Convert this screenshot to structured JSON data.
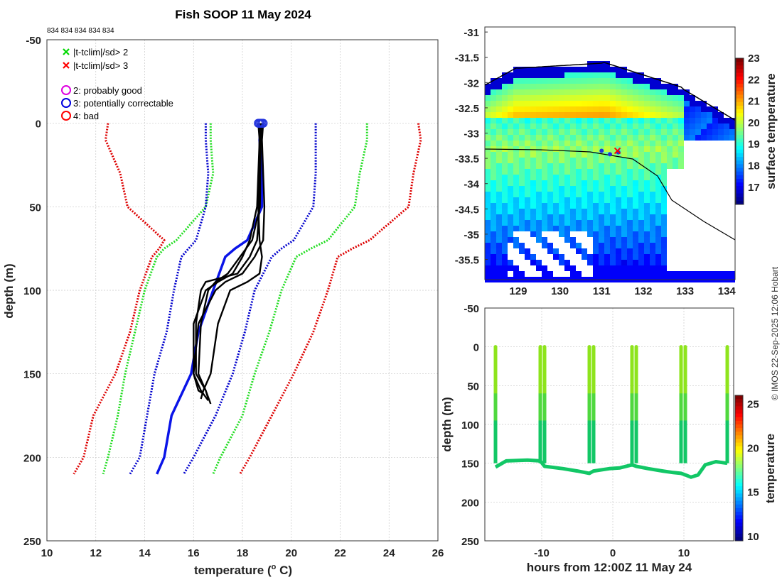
{
  "chart_data": [
    {
      "type": "line",
      "id": "profile",
      "title": "Fish SOOP 11 May 2024",
      "ids_label": "834 834 834 834 834",
      "xlabel": "temperature (",
      "xlabel_unit_sup": "o",
      "xlabel_unit": " C)",
      "ylabel": "depth (m)",
      "xlim": [
        10,
        26
      ],
      "ylim": [
        -50,
        250
      ],
      "xticks": [
        10,
        12,
        14,
        16,
        18,
        20,
        22,
        24,
        26
      ],
      "yticks": [
        -50,
        0,
        50,
        100,
        150,
        200,
        250
      ],
      "legend": [
        {
          "marker": "x",
          "color": "#00d800",
          "label": "|t-tclim|/sd> 2"
        },
        {
          "marker": "x",
          "color": "#ff0000",
          "label": "|t-tclim|/sd> 3"
        },
        {
          "marker": "o",
          "color": "#e000e0",
          "label": "2: probably good"
        },
        {
          "marker": "o",
          "color": "#0000e0",
          "label": "3: potentially correctable"
        },
        {
          "marker": "o",
          "color": "#ff0000",
          "label": "4: bad"
        }
      ],
      "climatology": {
        "depth": [
          0,
          10,
          30,
          50,
          70,
          75,
          80,
          100,
          125,
          150,
          175,
          200,
          210
        ],
        "mean": [
          18.8,
          18.7,
          18.8,
          18.8,
          18.2,
          17.7,
          17.3,
          16.8,
          16.2,
          15.9,
          15.1,
          14.8,
          14.5
        ],
        "sd2_low": [
          16.7,
          16.7,
          16.8,
          16.5,
          15.3,
          14.8,
          14.5,
          14.0,
          13.6,
          13.2,
          12.9,
          12.5,
          12.3
        ],
        "sd2_high": [
          23.1,
          23.1,
          22.8,
          22.6,
          21.5,
          20.8,
          20.2,
          19.6,
          19.1,
          18.5,
          18.0,
          17.1,
          16.8
        ],
        "sd3_low": [
          12.5,
          12.4,
          13.0,
          13.3,
          14.8,
          14.6,
          14.3,
          13.8,
          13.4,
          12.8,
          11.9,
          11.5,
          11.1
        ],
        "sd3_high": [
          25.2,
          25.3,
          25.0,
          24.8,
          23.2,
          22.5,
          21.9,
          21.5,
          20.9,
          20.1,
          19.2,
          18.3,
          17.9
        ],
        "sd1_low": [
          16.5,
          16.5,
          16.6,
          16.5,
          16.1,
          15.8,
          15.5,
          15.2,
          14.9,
          14.4,
          14.1,
          13.8,
          13.4
        ],
        "sd1_high": [
          21.0,
          21.0,
          21.0,
          20.9,
          20.1,
          19.6,
          19.2,
          18.5,
          18.1,
          17.6,
          16.9,
          16.0,
          15.6
        ]
      },
      "profiles": [
        {
          "depth": [
            0,
            10,
            50,
            70,
            80,
            90,
            95,
            100,
            120,
            150,
            160,
            165
          ],
          "temp": [
            18.75,
            18.72,
            18.7,
            18.6,
            18.3,
            17.8,
            16.5,
            16.3,
            16.1,
            16.1,
            16.5,
            16.6
          ]
        },
        {
          "depth": [
            0,
            10,
            50,
            70,
            80,
            90,
            95,
            100,
            120,
            150,
            160,
            168
          ],
          "temp": [
            18.8,
            18.75,
            18.72,
            18.4,
            17.9,
            17.4,
            16.9,
            16.6,
            16.3,
            16.2,
            16.5,
            16.7
          ]
        },
        {
          "depth": [
            0,
            10,
            50,
            70,
            80,
            90,
            95,
            100,
            120,
            150,
            160,
            165
          ],
          "temp": [
            18.7,
            18.7,
            18.65,
            18.7,
            18.8,
            18.7,
            18.2,
            17.5,
            17.0,
            16.7,
            16.4,
            16.3
          ]
        },
        {
          "depth": [
            0,
            10,
            50,
            70,
            80,
            90,
            95,
            100,
            120,
            150,
            160,
            162
          ],
          "temp": [
            18.85,
            18.8,
            18.9,
            18.85,
            18.5,
            18.0,
            17.3,
            16.9,
            16.2,
            16.0,
            16.2,
            16.4
          ]
        },
        {
          "depth": [
            0,
            10,
            50,
            70,
            80,
            90,
            95,
            100,
            120,
            150,
            160,
            166
          ],
          "temp": [
            18.65,
            18.7,
            18.6,
            18.3,
            18.0,
            17.6,
            17.0,
            16.5,
            16.0,
            16.0,
            16.3,
            16.6
          ]
        }
      ]
    },
    {
      "type": "heatmap",
      "id": "map",
      "colorbar_label": "surface temperature",
      "xlim": [
        128.2,
        134.2
      ],
      "ylim": [
        -35.9,
        -30.9
      ],
      "xticks": [
        129,
        130,
        131,
        132,
        133,
        134
      ],
      "yticks": [
        -31,
        -31.5,
        -32,
        -32.5,
        -33,
        -33.5,
        -34,
        -34.5,
        -35,
        -35.5
      ],
      "clim": [
        16.2,
        23
      ],
      "cticks": [
        17,
        18,
        19,
        20,
        21,
        22,
        23
      ],
      "track": {
        "lon": [
          131.0,
          131.2,
          131.4
        ],
        "lat": [
          -33.35,
          -33.42,
          -33.38
        ]
      }
    },
    {
      "type": "scatter",
      "id": "section",
      "xlabel": "hours from 12:00Z 11 May 24",
      "ylabel": "depth (m)",
      "colorbar_label": "temperature",
      "xlim": [
        -18,
        17
      ],
      "ylim": [
        -50,
        250
      ],
      "xticks": [
        -10,
        0,
        10
      ],
      "yticks": [
        -50,
        0,
        50,
        100,
        150,
        200,
        250
      ],
      "clim": [
        9.5,
        26
      ],
      "cticks": [
        10,
        15,
        20,
        25
      ],
      "drops": [
        -16.5,
        -10.2,
        -9.6,
        -3.3,
        -2.7,
        2.7,
        3.3,
        9.6,
        10.2,
        16.1
      ],
      "bottom": {
        "x": [
          -16.5,
          -15.0,
          -12.0,
          -10.2,
          -9.6,
          -7.0,
          -5.0,
          -3.3,
          -2.7,
          -0.5,
          1.0,
          2.7,
          3.3,
          5.0,
          7.0,
          8.5,
          9.6,
          10.2,
          11.0,
          12.0,
          13.0,
          14.5,
          16.1
        ],
        "depth": [
          155,
          147,
          146,
          147,
          154,
          157,
          160,
          163,
          160,
          157,
          156,
          152,
          154,
          157,
          160,
          162,
          163,
          165,
          168,
          165,
          152,
          148,
          150
        ]
      }
    }
  ],
  "credit": "© IMOS 22-Sep-2025 12:06 Hobart"
}
